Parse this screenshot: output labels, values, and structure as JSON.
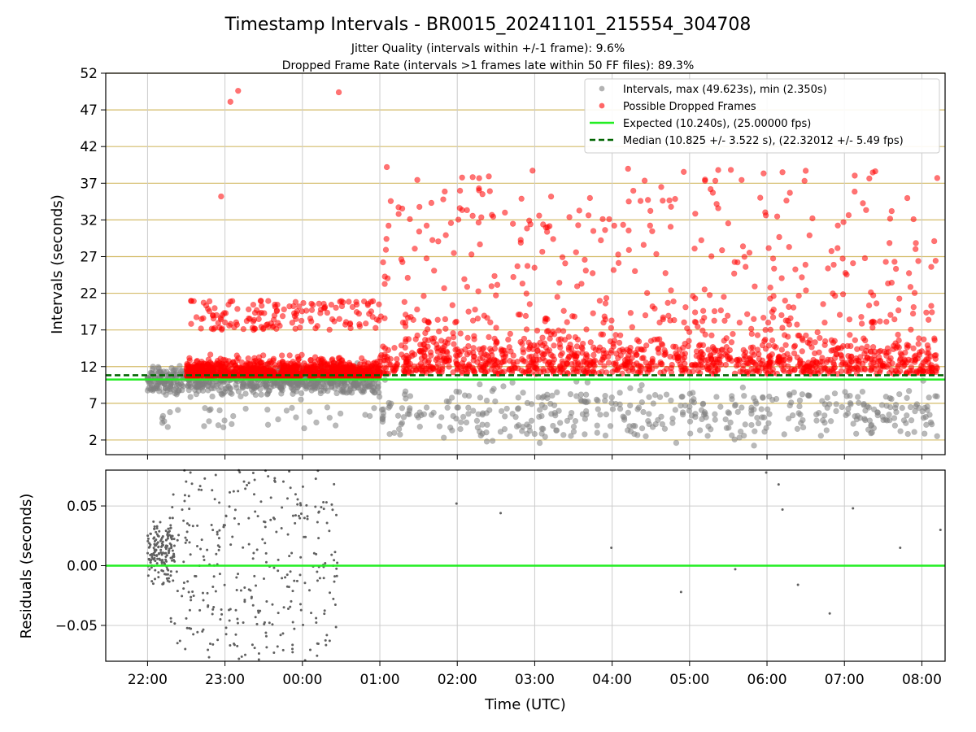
{
  "title": "Timestamp Intervals - BR0015_20241101_215554_304708",
  "subtitle_lines": [
    "Jitter Quality (intervals within +/-1 frame): 9.6%",
    "Dropped Frame Rate (intervals >1 frames late within 50 FF files): 89.3%"
  ],
  "colors": {
    "intervals": "#808080",
    "dropped": "#ff0000",
    "expected": "#22ee22",
    "median": "#006400",
    "ygrid": "#d4bc6a",
    "xgrid": "#cccccc",
    "residual": "#606060"
  },
  "chart_data": [
    {
      "type": "scatter",
      "ylabel": "Intervals (seconds)",
      "ylim": [
        0,
        52
      ],
      "xlim_hours": [
        -0.54,
        10.3
      ],
      "yticks": [
        2,
        7,
        12,
        17,
        22,
        27,
        32,
        37,
        42,
        47,
        52
      ],
      "ytick_labels": [
        "2",
        "7",
        "12",
        "17",
        "22",
        "27",
        "32",
        "37",
        "42",
        "47",
        "52"
      ],
      "grid": "x-and-y",
      "legend_position": "top-right",
      "legend": [
        "Intervals, max (49.623s), min (2.350s)",
        "Possible Dropped Frames",
        "Expected (10.240s), (25.00000 fps)",
        "Median (10.825 +/- 3.522 s), (22.32012 +/- 5.49 fps)"
      ],
      "expected_interval": 10.24,
      "median_interval": 10.825,
      "series_approx": [
        {
          "name": "Intervals",
          "segments": [
            {
              "x_range_h": [
                0.0,
                3.0
              ],
              "median": 10.0,
              "spread": 1.5,
              "outliers_low": [
                3.5,
                6.5
              ]
            },
            {
              "x_range_h": [
                3.0,
                10.2
              ],
              "median": 6.0,
              "spread": 3.0,
              "outliers_low": [
                2.3,
                5.0
              ]
            }
          ]
        },
        {
          "name": "Possible Dropped Frames",
          "segments": [
            {
              "x_range_h": [
                0.5,
                3.0
              ],
              "band": [
                10.5,
                13.0
              ],
              "upper_band": [
                17,
                21
              ]
            },
            {
              "x_range_h": [
                3.0,
                10.2
              ],
              "band": [
                11.0,
                17.0
              ],
              "upper_band": [
                18,
                39
              ]
            }
          ],
          "notable_points": [
            [
              1.07,
              48.1
            ],
            [
              1.17,
              49.6
            ],
            [
              2.47,
              49.4
            ],
            [
              0.95,
              35.2
            ],
            [
              3.09,
              39.2
            ],
            [
              4.28,
              36.3
            ],
            [
              7.2,
              37.5
            ],
            [
              7.37,
              38.8
            ],
            [
              8.2,
              38.5
            ],
            [
              8.5,
              38.7
            ]
          ]
        }
      ]
    },
    {
      "type": "scatter",
      "xlabel": "Time (UTC)",
      "ylabel": "Residuals (seconds)",
      "ylim": [
        -0.08,
        0.08
      ],
      "yticks": [
        -0.05,
        0.0,
        0.05
      ],
      "ytick_labels": [
        "−0.05",
        "0.00",
        "0.05"
      ],
      "xticks_hours": [
        0,
        1,
        2,
        3,
        4,
        5,
        6,
        7,
        8,
        9,
        10
      ],
      "xtick_labels": [
        "22:00",
        "23:00",
        "00:00",
        "01:00",
        "02:00",
        "03:00",
        "04:00",
        "05:00",
        "06:00",
        "07:00",
        "08:00"
      ],
      "zero_line": 0.0,
      "sparse_points": [
        [
          3.99,
          0.052
        ],
        [
          4.56,
          0.044
        ],
        [
          5.99,
          0.015
        ],
        [
          6.89,
          -0.022
        ],
        [
          7.59,
          -0.003
        ],
        [
          7.99,
          0.078
        ],
        [
          8.15,
          0.068
        ],
        [
          8.2,
          0.047
        ],
        [
          8.4,
          -0.016
        ],
        [
          8.81,
          -0.04
        ],
        [
          9.11,
          0.048
        ],
        [
          9.72,
          0.015
        ],
        [
          10.24,
          0.03
        ]
      ]
    }
  ]
}
